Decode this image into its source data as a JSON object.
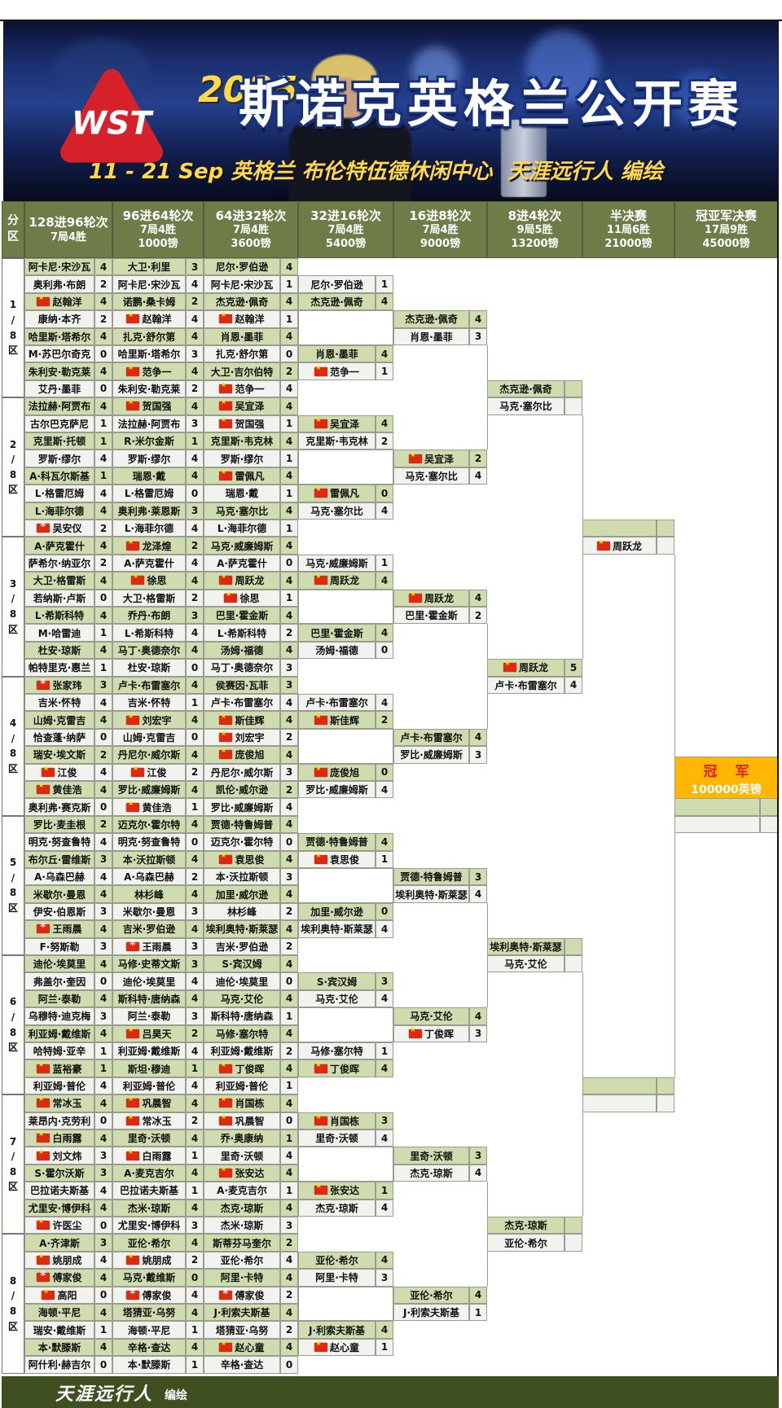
{
  "header": {
    "logo": "WST",
    "year": "2025",
    "title": "斯诺克英格兰公开赛",
    "date_venue": "11 - 21 Sep  英格兰 布伦特伍德休闲中心",
    "credit_line": "天涯远行人   编绘"
  },
  "sidebar_header": "分区",
  "columns": [
    {
      "title": "128进96轮次",
      "frames": "7局4胜",
      "prize": ""
    },
    {
      "title": "96进64轮次",
      "frames": "7局4胜",
      "prize": "1000镑"
    },
    {
      "title": "64进32轮次",
      "frames": "7局4胜",
      "prize": "3600镑"
    },
    {
      "title": "32进16轮次",
      "frames": "7局4胜",
      "prize": "5400镑"
    },
    {
      "title": "16进8轮次",
      "frames": "7局4胜",
      "prize": "9000镑"
    },
    {
      "title": "8进4轮次",
      "frames": "9局5胜",
      "prize": "13200镑"
    },
    {
      "title": "半决赛",
      "frames": "11局6胜",
      "prize": "21000镑"
    },
    {
      "title": "冠亚军决赛",
      "frames": "17局9胜",
      "prize": "45000镑"
    }
  ],
  "sections": [
    "1/8区",
    "2/8区",
    "3/8区",
    "4/8区",
    "5/8区",
    "6/8区",
    "7/8区",
    "8/8区"
  ],
  "champion": {
    "label": "冠 军",
    "prize": "100000英镑"
  },
  "footer": {
    "credit": "天涯远行人",
    "suffix": "编绘"
  },
  "colors": {
    "cell_green": "#cfddae",
    "cell_white": "#f2f2ef",
    "header_olive": "#6e7c48",
    "footer_green": "#3f4f20",
    "champion_orange": "#ffb703",
    "champion_red": "#e0261a",
    "flag_red": "#de2910",
    "title_yellow": "#ffd94a"
  },
  "bracket": {
    "c1": [
      [
        "阿卡尼·宋沙瓦",
        "4"
      ],
      [
        "奥利弗·布朗",
        "2"
      ],
      [
        "赵翰洋",
        "4",
        "cn"
      ],
      [
        "康纳·本齐",
        "2"
      ],
      [
        "哈里斯·塔希尔",
        "4"
      ],
      [
        "M·苏巴尔奇克",
        "0"
      ],
      [
        "朱利安·勒克莱",
        "4"
      ],
      [
        "艾丹·墨菲",
        "0"
      ],
      [
        "法拉赫·阿贾布",
        "4"
      ],
      [
        "古尔巴克萨尼",
        "1"
      ],
      [
        "克里斯·托顿",
        "1"
      ],
      [
        "罗斯·缪尔",
        "4"
      ],
      [
        "A·科瓦尔斯基",
        "1"
      ],
      [
        "L·格雷厄姆",
        "4"
      ],
      [
        "L·海菲尔德",
        "4"
      ],
      [
        "吴安仪",
        "2",
        "hk"
      ],
      [
        "A·萨克霍什",
        "4"
      ],
      [
        "萨希尔·纳亚尔",
        "2"
      ],
      [
        "大卫·格雷斯",
        "4"
      ],
      [
        "若纳斯·卢斯",
        "0"
      ],
      [
        "L·希斯科特",
        "4"
      ],
      [
        "M·哈雷迪",
        "1"
      ],
      [
        "杜安·琼斯",
        "4"
      ],
      [
        "帕特里克·惠兰",
        "1"
      ],
      [
        "张家玮",
        "3",
        "hk"
      ],
      [
        "吉米·怀特",
        "4"
      ],
      [
        "山姆·克雷吉",
        "4"
      ],
      [
        "恰查蓬·纳萨",
        "0"
      ],
      [
        "瑞安·埃文斯",
        "2"
      ],
      [
        "江俊",
        "4",
        "cn"
      ],
      [
        "黄佳浩",
        "4",
        "cn"
      ],
      [
        "奥利弗·赛克斯",
        "0"
      ],
      [
        "罗比·麦圭根",
        "2"
      ],
      [
        "明克·努查鲁特",
        "4"
      ],
      [
        "布尔丘·雷维斯",
        "3"
      ],
      [
        "A·乌森巴赫",
        "4"
      ],
      [
        "米歇尔·曼恩",
        "4"
      ],
      [
        "伊安·伯恩斯",
        "3"
      ],
      [
        "王雨晨",
        "4",
        "hk"
      ],
      [
        "F·努斯勒",
        "3"
      ],
      [
        "迪伦·埃莫里",
        "4"
      ],
      [
        "弗盖尔·奎因",
        "0"
      ],
      [
        "阿兰·泰勒",
        "4"
      ],
      [
        "乌穆特·迪克梅",
        "3"
      ],
      [
        "利亚姆·戴维斯",
        "4"
      ],
      [
        "哈特姆·亚辛",
        "1"
      ],
      [
        "蓝裕豪",
        "1",
        "cn"
      ],
      [
        "利亚姆·普伦",
        "4"
      ],
      [
        "常冰玉",
        "4",
        "cn"
      ],
      [
        "莱昂内·克劳利",
        "0"
      ],
      [
        "白雨露",
        "4",
        "cn"
      ],
      [
        "刘文炜",
        "3",
        "cn"
      ],
      [
        "S·霍尔沃斯",
        "3"
      ],
      [
        "巴拉诺夫斯基",
        "4"
      ],
      [
        "尤里安·博伊科",
        "4"
      ],
      [
        "许医尘",
        "0",
        "cn"
      ],
      [
        "A·齐津斯",
        "3"
      ],
      [
        "姚朋成",
        "4",
        "cn"
      ],
      [
        "傅家俊",
        "4",
        "hk"
      ],
      [
        "高阳",
        "0",
        "cn"
      ],
      [
        "海顿·平尼",
        "4"
      ],
      [
        "瑞安·戴维斯",
        "1"
      ],
      [
        "本·默滕斯",
        "4"
      ],
      [
        "阿什利·赫吉尔",
        "0"
      ]
    ],
    "c2": [
      [
        "大卫·利里",
        "3"
      ],
      [
        "阿卡尼·宋沙瓦",
        "4"
      ],
      [
        "诺鹏·桑卡姆",
        "2"
      ],
      [
        "赵翰洋",
        "4",
        "cn"
      ],
      [
        "扎克·舒尔第",
        "4"
      ],
      [
        "哈里斯·塔希尔",
        "3"
      ],
      [
        "范争一",
        "4",
        "cn"
      ],
      [
        "朱利安·勒克莱",
        "2"
      ],
      [
        "贺国强",
        "4",
        "cn"
      ],
      [
        "法拉赫·阿贾布",
        "3"
      ],
      [
        "R·米尔金斯",
        "1"
      ],
      [
        "罗斯·缪尔",
        "4"
      ],
      [
        "瑞恩·戴",
        "4"
      ],
      [
        "L·格雷厄姆",
        "0"
      ],
      [
        "奥利弗·莱恩斯",
        "3"
      ],
      [
        "L·海菲尔德",
        "4"
      ],
      [
        "龙泽煌",
        "2",
        "cn"
      ],
      [
        "A·萨克霍什",
        "4"
      ],
      [
        "徐思",
        "4",
        "cn"
      ],
      [
        "大卫·格雷斯",
        "2"
      ],
      [
        "乔丹·布朗",
        "3"
      ],
      [
        "L·希斯科特",
        "4"
      ],
      [
        "马丁·奥德奈尔",
        "4"
      ],
      [
        "杜安·琼斯",
        "0"
      ],
      [
        "卢卡·布雷塞尔",
        "4"
      ],
      [
        "吉米·怀特",
        "1"
      ],
      [
        "刘宏宇",
        "4",
        "cn"
      ],
      [
        "山姆·克雷吉",
        "0"
      ],
      [
        "丹尼尔·威尔斯",
        "4"
      ],
      [
        "江俊",
        "2",
        "cn"
      ],
      [
        "罗比·威廉姆斯",
        "4"
      ],
      [
        "黄佳浩",
        "1",
        "cn"
      ],
      [
        "迈克尔·霍尔特",
        "4"
      ],
      [
        "明克·努查鲁特",
        "0"
      ],
      [
        "本·沃拉斯顿",
        "4"
      ],
      [
        "A·乌森巴赫",
        "2"
      ],
      [
        "林杉峰",
        "4"
      ],
      [
        "米歇尔·曼恩",
        "3"
      ],
      [
        "吉米·罗伯逊",
        "4"
      ],
      [
        "王雨晨",
        "3",
        "hk"
      ],
      [
        "马修·史蒂文斯",
        "3"
      ],
      [
        "迪伦·埃莫里",
        "4"
      ],
      [
        "斯科特·唐纳森",
        "4"
      ],
      [
        "阿兰·泰勒",
        "3"
      ],
      [
        "吕昊天",
        "2",
        "cn"
      ],
      [
        "利亚姆·戴维斯",
        "4"
      ],
      [
        "斯坦·穆迪",
        "1"
      ],
      [
        "利亚姆·普伦",
        "4"
      ],
      [
        "巩晨智",
        "4",
        "cn"
      ],
      [
        "常冰玉",
        "2",
        "cn"
      ],
      [
        "里奇·沃顿",
        "4"
      ],
      [
        "白雨露",
        "1",
        "cn"
      ],
      [
        "A·麦克吉尔",
        "4"
      ],
      [
        "巴拉诺夫斯基",
        "1"
      ],
      [
        "杰米·琼斯",
        "4"
      ],
      [
        "尤里安·博伊科",
        "3"
      ],
      [
        "亚伦·希尔",
        "4"
      ],
      [
        "姚朋成",
        "2",
        "cn"
      ],
      [
        "马克·戴维斯",
        "0"
      ],
      [
        "傅家俊",
        "4",
        "hk"
      ],
      [
        "塔猜亚·乌努",
        "4"
      ],
      [
        "海顿·平尼",
        "1"
      ],
      [
        "辛格·查达",
        "4"
      ],
      [
        "本·默滕斯",
        "1"
      ]
    ],
    "c3": [
      [
        "尼尔·罗伯逊",
        "4"
      ],
      [
        "阿卡尼·宋沙瓦",
        "1"
      ],
      [
        "杰克逊·佩奇",
        "4"
      ],
      [
        "赵翰洋",
        "1",
        "cn"
      ],
      [
        "肖恩·墨菲",
        "4"
      ],
      [
        "扎克·舒尔第",
        "0"
      ],
      [
        "大卫·吉尔伯特",
        "2"
      ],
      [
        "范争一",
        "4",
        "cn"
      ],
      [
        "吴宜泽",
        "4",
        "cn"
      ],
      [
        "贺国强",
        "1",
        "cn"
      ],
      [
        "克里斯·韦克林",
        "4"
      ],
      [
        "罗斯·缪尔",
        "1"
      ],
      [
        "雷佩凡",
        "4",
        "cn"
      ],
      [
        "瑞恩·戴",
        "1"
      ],
      [
        "马克·塞尔比",
        "4"
      ],
      [
        "L·海菲尔德",
        "1"
      ],
      [
        "马克·威廉姆斯",
        "4"
      ],
      [
        "A·萨克霍什",
        "0"
      ],
      [
        "周跃龙",
        "4",
        "cn"
      ],
      [
        "徐思",
        "1",
        "cn"
      ],
      [
        "巴里·霍金斯",
        "4"
      ],
      [
        "L·希斯科特",
        "2"
      ],
      [
        "汤姆·福德",
        "4"
      ],
      [
        "马丁·奥德奈尔",
        "3"
      ],
      [
        "侯赛因·瓦菲",
        "3"
      ],
      [
        "卢卡·布雷塞尔",
        "4"
      ],
      [
        "斯佳辉",
        "4",
        "cn"
      ],
      [
        "刘宏宇",
        "2",
        "cn"
      ],
      [
        "庞俊旭",
        "4",
        "cn"
      ],
      [
        "丹尼尔·威尔斯",
        "3"
      ],
      [
        "凯伦·威尔逊",
        "2"
      ],
      [
        "罗比·威廉姆斯",
        "4"
      ],
      [
        "贾德·特鲁姆普",
        "4"
      ],
      [
        "迈克尔·霍尔特",
        "0"
      ],
      [
        "袁思俊",
        "4",
        "cn"
      ],
      [
        "本·沃拉斯顿",
        "3"
      ],
      [
        "加里·威尔逊",
        "4"
      ],
      [
        "林杉峰",
        "2"
      ],
      [
        "埃利奥特·斯莱瑟",
        "4"
      ],
      [
        "吉米·罗伯逊",
        "2"
      ],
      [
        "S·宾汉姆",
        "4"
      ],
      [
        "迪伦·埃莫里",
        "0"
      ],
      [
        "马克·艾伦",
        "4"
      ],
      [
        "斯科特·唐纳森",
        "1"
      ],
      [
        "马修·塞尔特",
        "4"
      ],
      [
        "利亚姆·戴维斯",
        "2"
      ],
      [
        "丁俊晖",
        "4",
        "cn"
      ],
      [
        "利亚姆·普伦",
        "1"
      ],
      [
        "肖国栋",
        "4",
        "cn"
      ],
      [
        "巩晨智",
        "0",
        "cn"
      ],
      [
        "乔·奥康纳",
        "1"
      ],
      [
        "里奇·沃顿",
        "4"
      ],
      [
        "张安达",
        "4",
        "cn"
      ],
      [
        "A·麦克吉尔",
        "1"
      ],
      [
        "杰克·琼斯",
        "4"
      ],
      [
        "杰米·琼斯",
        "3"
      ],
      [
        "斯蒂芬马奎尔",
        "2"
      ],
      [
        "亚伦·希尔",
        "4"
      ],
      [
        "阿里·卡特",
        "4"
      ],
      [
        "傅家俊",
        "2",
        "hk"
      ],
      [
        "J·利索夫斯基",
        "4"
      ],
      [
        "塔猜亚·乌努",
        "2"
      ],
      [
        "赵心童",
        "4",
        "cn"
      ],
      [
        "辛格·查达",
        "0"
      ]
    ],
    "c4": [
      [
        2,
        "尼尔·罗伯逊",
        "1",
        null,
        0
      ],
      [
        3,
        "杰克逊·佩奇",
        "4",
        null,
        1
      ],
      [
        6,
        "肖恩·墨菲",
        "4",
        null,
        1
      ],
      [
        7,
        "范争一",
        "1",
        "cn",
        0
      ],
      [
        10,
        "吴宜泽",
        "4",
        "cn",
        1
      ],
      [
        11,
        "克里斯·韦克林",
        "2",
        null,
        0
      ],
      [
        14,
        "雷佩凡",
        "0",
        "cn",
        1
      ],
      [
        15,
        "马克·塞尔比",
        "4",
        null,
        0
      ],
      [
        18,
        "马克·威廉姆斯",
        "1",
        null,
        0
      ],
      [
        19,
        "周跃龙",
        "4",
        "cn",
        1
      ],
      [
        22,
        "巴里·霍金斯",
        "4",
        null,
        1
      ],
      [
        23,
        "汤姆·福德",
        "0",
        null,
        0
      ],
      [
        26,
        "卢卡·布雷塞尔",
        "4",
        null,
        0
      ],
      [
        27,
        "斯佳辉",
        "2",
        "cn",
        1
      ],
      [
        30,
        "庞俊旭",
        "0",
        "cn",
        1
      ],
      [
        31,
        "罗比·威廉姆斯",
        "4",
        null,
        0
      ],
      [
        34,
        "贾德·特鲁姆普",
        "4",
        null,
        1
      ],
      [
        35,
        "袁思俊",
        "1",
        "cn",
        0
      ],
      [
        38,
        "加里·威尔逊",
        "0",
        null,
        1
      ],
      [
        39,
        "埃利奥特·斯莱瑟",
        "4",
        null,
        0
      ],
      [
        42,
        "S·宾汉姆",
        "3",
        null,
        1
      ],
      [
        43,
        "马克·艾伦",
        "4",
        null,
        0
      ],
      [
        46,
        "马修·塞尔特",
        "1",
        null,
        0
      ],
      [
        47,
        "丁俊晖",
        "4",
        "cn",
        1
      ],
      [
        50,
        "肖国栋",
        "3",
        "cn",
        1
      ],
      [
        51,
        "里奇·沃顿",
        "4",
        null,
        0
      ],
      [
        54,
        "张安达",
        "1",
        "cn",
        1
      ],
      [
        55,
        "杰克·琼斯",
        "4",
        null,
        0
      ],
      [
        58,
        "亚伦·希尔",
        "4",
        null,
        1
      ],
      [
        59,
        "阿里·卡特",
        "3",
        null,
        0
      ],
      [
        62,
        "J·利索夫斯基",
        "4",
        null,
        1
      ],
      [
        63,
        "赵心童",
        "1",
        "cn",
        0
      ]
    ],
    "c5": [
      [
        4,
        "杰克逊·佩奇",
        "4",
        null,
        1
      ],
      [
        5,
        "肖恩·墨菲",
        "3",
        null,
        0
      ],
      [
        12,
        "吴宜泽",
        "2",
        "cn",
        1
      ],
      [
        13,
        "马克·塞尔比",
        "4",
        null,
        0
      ],
      [
        20,
        "周跃龙",
        "4",
        "cn",
        1
      ],
      [
        21,
        "巴里·霍金斯",
        "2",
        null,
        0
      ],
      [
        28,
        "卢卡·布雷塞尔",
        "4",
        null,
        1
      ],
      [
        29,
        "罗比·威廉姆斯",
        "3",
        null,
        0
      ],
      [
        36,
        "贾德·特鲁姆普",
        "3",
        null,
        1
      ],
      [
        37,
        "埃利奥特·斯莱瑟",
        "4",
        null,
        0
      ],
      [
        44,
        "马克·艾伦",
        "4",
        null,
        1
      ],
      [
        45,
        "丁俊晖",
        "3",
        "cn",
        0
      ],
      [
        52,
        "里奇·沃顿",
        "3",
        null,
        1
      ],
      [
        53,
        "杰克·琼斯",
        "4",
        null,
        0
      ],
      [
        60,
        "亚伦·希尔",
        "4",
        null,
        1
      ],
      [
        61,
        "J·利索夫斯基",
        "1",
        null,
        0
      ]
    ],
    "c6": [
      [
        8,
        "杰克逊·佩奇",
        "",
        null,
        1
      ],
      [
        9,
        "马克·塞尔比",
        "",
        null,
        0
      ],
      [
        24,
        "周跃龙",
        "5",
        "cn",
        1
      ],
      [
        25,
        "卢卡·布雷塞尔",
        "4",
        null,
        0
      ],
      [
        40,
        "埃利奥特·斯莱瑟",
        "",
        null,
        1
      ],
      [
        41,
        "马克·艾伦",
        "",
        null,
        0
      ],
      [
        56,
        "杰克·琼斯",
        "",
        null,
        1
      ],
      [
        57,
        "亚伦·希尔",
        "",
        null,
        0
      ]
    ],
    "c7": [
      [
        16,
        "",
        "",
        null,
        1
      ],
      [
        17,
        "周跃龙",
        "",
        "cn",
        0
      ],
      [
        48,
        "",
        "",
        null,
        1
      ],
      [
        49,
        "",
        "",
        null,
        0
      ]
    ],
    "c8": [
      [
        32,
        "",
        "",
        null,
        1
      ],
      [
        33,
        "",
        "",
        null,
        0
      ]
    ]
  }
}
